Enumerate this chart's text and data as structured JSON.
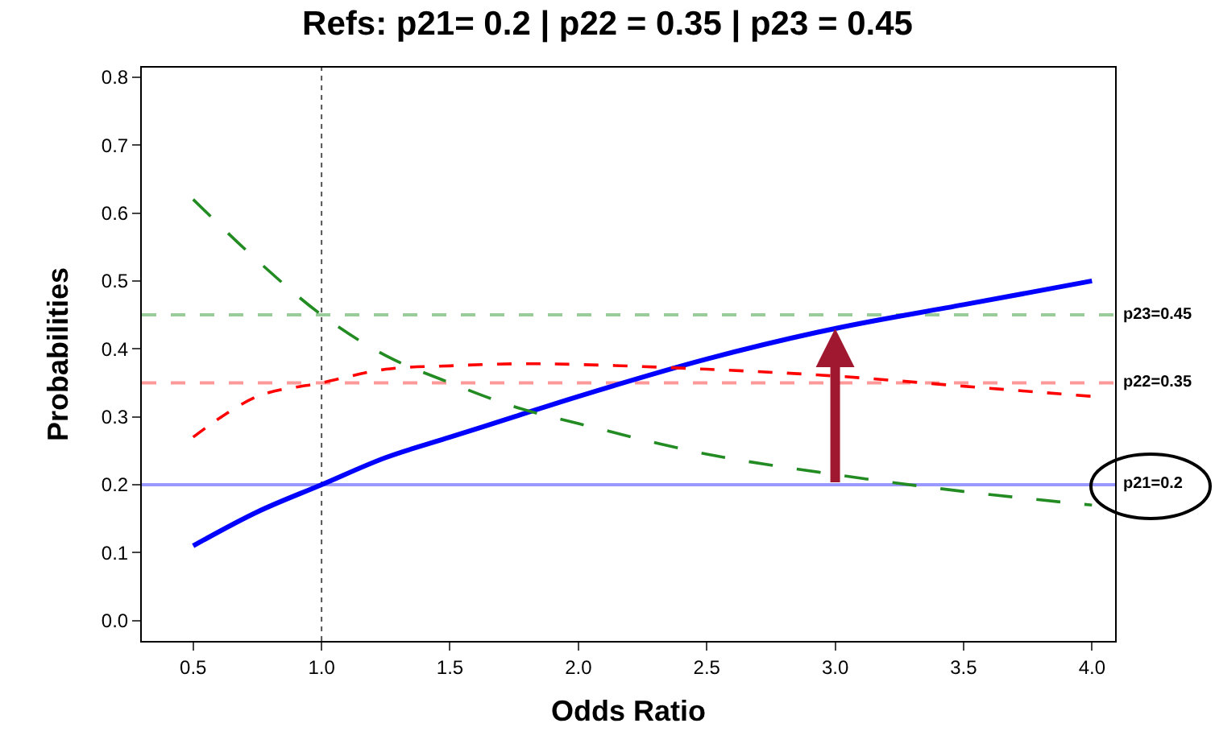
{
  "chart_data": {
    "type": "line",
    "title": "Refs: p21= 0.2 | p22 = 0.35 | p23 = 0.45",
    "xlabel": "Odds Ratio",
    "ylabel": "Probabilities",
    "x": [
      0.5,
      0.75,
      1,
      1.25,
      1.5,
      1.75,
      2,
      2.5,
      3,
      3.5,
      4
    ],
    "series": [
      {
        "color": "#0000ff",
        "line_style": "solid",
        "values": [
          0.11,
          0.16,
          0.2,
          0.24,
          0.27,
          0.3,
          0.33,
          0.385,
          0.43,
          0.465,
          0.5
        ]
      },
      {
        "color": "#ff0000",
        "line_style": "dotted",
        "values": [
          0.27,
          0.33,
          0.35,
          0.37,
          0.375,
          0.378,
          0.377,
          0.37,
          0.36,
          0.345,
          0.33
        ]
      },
      {
        "color": "#228b22",
        "line_style": "dashed",
        "values": [
          0.62,
          0.53,
          0.45,
          0.39,
          0.35,
          0.315,
          0.29,
          0.245,
          0.215,
          0.19,
          0.17
        ]
      }
    ],
    "xlim": [
      0.3,
      4.09
    ],
    "xticks": [
      {
        "value": 0.5,
        "label": "0.5"
      },
      {
        "value": 1,
        "label": "1.0"
      },
      {
        "value": 1.5,
        "label": "1.5"
      },
      {
        "value": 2,
        "label": "2.0"
      },
      {
        "value": 2.5,
        "label": "2.5"
      },
      {
        "value": 3,
        "label": "3.0"
      },
      {
        "value": 3.5,
        "label": "3.5"
      },
      {
        "value": 4,
        "label": "4.0"
      }
    ],
    "ylim": [
      -0.03,
      0.814
    ],
    "yticks": [
      {
        "value": 0,
        "label": "0.0"
      },
      0.1,
      0.2,
      0.3,
      0.4,
      0.5,
      0.6,
      0.7,
      0.8
    ],
    "ref_lines": [
      {
        "axis": "y",
        "value": 0.2,
        "label": "p21=0.2",
        "color": "#9999ff",
        "line_style": "solid"
      },
      {
        "axis": "y",
        "value": 0.35,
        "label": "p22=0.35",
        "color": "#ff9999",
        "line_style": "dashed"
      },
      {
        "axis": "y",
        "value": 0.45,
        "label": "p23=0.45",
        "color": "#99cc99",
        "line_style": "dashed"
      },
      {
        "axis": "x",
        "value": 1,
        "color": "#555555",
        "line_style": "dotted"
      }
    ],
    "grid": false,
    "marker": "none"
  }
}
